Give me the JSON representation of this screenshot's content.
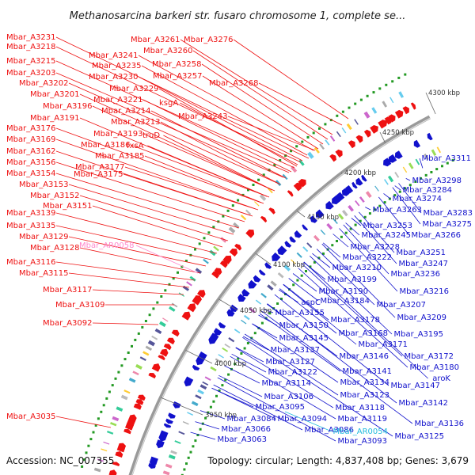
{
  "title": "Methanosarcina barkeri str. fusaro chromosome 1, complete se...",
  "footer": {
    "accession": "Accession: NC_007355",
    "stats": "Topology: circular; Length: 4,837,408 bp; Genes: 3,679"
  },
  "colors": {
    "forward": "#ee1111",
    "reverse": "#1111cc",
    "rna_forward": "#ff88cc",
    "rna_reverse": "#22bbdd",
    "backbone": "#888888"
  },
  "ticks": [
    "3950 kbp",
    "4000 kbp",
    "4050 kbp",
    "4100 kbp",
    "4150 kbp",
    "4200 kbp",
    "4250 kbp",
    "4300 kbp"
  ],
  "left_labels": [
    "Mbar_A3231",
    "Mbar_A3218",
    "Mbar_A3215",
    "Mbar_A3203",
    "Mbar_A3202",
    "Mbar_A3201",
    "Mbar_A3196",
    "Mbar_A3191",
    "Mbar_A3176",
    "Mbar_A3169",
    "Mbar_A3162",
    "Mbar_A3156",
    "Mbar_A3154",
    "Mbar_A3153",
    "Mbar_A3152",
    "Mbar_A3151",
    "Mbar_A3139",
    "Mbar_A3135",
    "Mbar_A3129",
    "Mbar_A3128",
    "Mbar_A3116",
    "Mbar_A3115",
    "Mbar_A3117",
    "Mbar_A3109",
    "Mbar_A3092",
    "Mbar_A3035"
  ],
  "mid_labels": [
    "Mbar_A3241",
    "Mbar_A3235",
    "Mbar_A3230",
    "Mbar_A3229",
    "Mbar_A3221",
    "Mbar_A3214",
    "Mbar_A3213",
    "Mbar_A3193",
    "Mbar_A3186",
    "Mbar_A3185",
    "Mbar_A3177",
    "Mbar_A3175",
    "truD",
    "fxsA",
    "ksgA",
    "Mbar_A3261",
    "Mbar_A3260",
    "Mbar_A3258",
    "Mbar_A3257",
    "Mbar_A3276",
    "Mbar_A3268",
    "Mbar_A3243"
  ],
  "rna_left_label": "Mbar_AR0058",
  "right_labels": [
    "Mbar_A3311",
    "Mbar_A3298",
    "Mbar_A3284",
    "Mbar_A3274",
    "Mbar_A3263",
    "Mbar_A3283",
    "Mbar_A3275",
    "Mbar_A3253",
    "Mbar_A3245",
    "Mbar_A3266",
    "Mbar_A3228",
    "Mbar_A3251",
    "Mbar_A3222",
    "Mbar_A3247",
    "Mbar_A3210",
    "Mbar_A3236",
    "Mbar_A3199",
    "Mbar_A3190",
    "Mbar_A3216",
    "Mbar_A3184",
    "aspC",
    "Mbar_A3207",
    "Mbar_A3155",
    "Mbar_A3209",
    "Mbar_A3178",
    "Mbar_A3150",
    "Mbar_A3168",
    "Mbar_A3195",
    "Mbar_A3145",
    "Mbar_A3171",
    "Mbar_A3137",
    "Mbar_A3146",
    "Mbar_A3172",
    "Mbar_A3127",
    "Mbar_A3180",
    "Mbar_A3122",
    "Mbar_A3141",
    "aroK",
    "Mbar_A3114",
    "Mbar_A3134",
    "Mbar_A3147",
    "Mbar_A3106",
    "Mbar_A3123",
    "Mbar_A3095",
    "Mbar_A3118",
    "Mbar_A3142",
    "Mbar_A3084",
    "Mbar_A3094",
    "Mbar_A3119",
    "Mbar_A3136",
    "Mbar_A3066",
    "Mbar_A3086",
    "Mbar_A3125",
    "Mbar_A3063",
    "Mbar_A3093"
  ],
  "rna_right_label": "Mbar_AR0054"
}
